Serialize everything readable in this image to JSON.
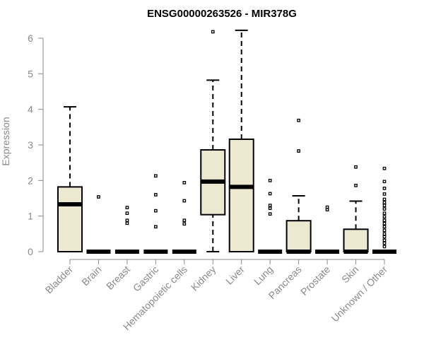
{
  "chart_data": {
    "type": "boxplot",
    "title": "ENSG00000263526 - MIR378G",
    "xlabel": "",
    "ylabel": "Expression",
    "ylim": [
      0,
      6.2
    ],
    "yticks": [
      "0",
      "1",
      "2",
      "3",
      "4",
      "5",
      "6"
    ],
    "grid": false,
    "box_fill": "#ede8d0",
    "line_color": "#000000",
    "categories": [
      "Bladder",
      "Brain",
      "Breast",
      "Gastric",
      "Hematopoietic cells",
      "Kidney",
      "Liver",
      "Lung",
      "Pancreas",
      "Prostate",
      "Skin",
      "Unknown / Other"
    ],
    "boxes": [
      {
        "q1": 0.0,
        "median": 1.33,
        "q3": 1.82,
        "whisker_low": 0.0,
        "whisker_high": 4.07,
        "outliers": []
      },
      {
        "q1": 0.0,
        "median": 0.0,
        "q3": 0.0,
        "whisker_low": 0.0,
        "whisker_high": 0.0,
        "outliers": [
          1.54
        ]
      },
      {
        "q1": 0.0,
        "median": 0.0,
        "q3": 0.0,
        "whisker_low": 0.0,
        "whisker_high": 0.0,
        "outliers": [
          1.24,
          1.08,
          0.88,
          0.8
        ]
      },
      {
        "q1": 0.0,
        "median": 0.0,
        "q3": 0.0,
        "whisker_low": 0.0,
        "whisker_high": 0.0,
        "outliers": [
          2.13,
          1.6,
          1.15,
          0.7
        ]
      },
      {
        "q1": 0.0,
        "median": 0.0,
        "q3": 0.0,
        "whisker_low": 0.0,
        "whisker_high": 0.0,
        "outliers": [
          1.94,
          1.43,
          0.88,
          0.78
        ]
      },
      {
        "q1": 1.04,
        "median": 1.97,
        "q3": 2.86,
        "whisker_low": 0.0,
        "whisker_high": 4.82,
        "outliers": [
          6.18
        ]
      },
      {
        "q1": 0.0,
        "median": 1.82,
        "q3": 3.16,
        "whisker_low": 0.0,
        "whisker_high": 6.22,
        "outliers": []
      },
      {
        "q1": 0.0,
        "median": 0.0,
        "q3": 0.0,
        "whisker_low": 0.0,
        "whisker_high": 0.0,
        "outliers": [
          2.0,
          1.63,
          1.3,
          1.22,
          1.06
        ]
      },
      {
        "q1": 0.0,
        "median": 0.0,
        "q3": 0.87,
        "whisker_low": 0.0,
        "whisker_high": 1.57,
        "outliers": [
          3.69,
          2.83
        ]
      },
      {
        "q1": 0.0,
        "median": 0.0,
        "q3": 0.0,
        "whisker_low": 0.0,
        "whisker_high": 0.0,
        "outliers": [
          1.25,
          1.18
        ]
      },
      {
        "q1": 0.0,
        "median": 0.0,
        "q3": 0.63,
        "whisker_low": 0.0,
        "whisker_high": 1.42,
        "outliers": [
          2.38,
          1.86
        ]
      },
      {
        "q1": 0.0,
        "median": 0.0,
        "q3": 0.0,
        "whisker_low": 0.0,
        "whisker_high": 0.0,
        "outliers": [
          2.34,
          1.97,
          1.78,
          1.62,
          1.47,
          1.38,
          1.3,
          1.2,
          1.08,
          0.98,
          0.88,
          0.79,
          0.7,
          0.6,
          0.5,
          0.42,
          0.32,
          0.24,
          0.14
        ]
      }
    ]
  }
}
